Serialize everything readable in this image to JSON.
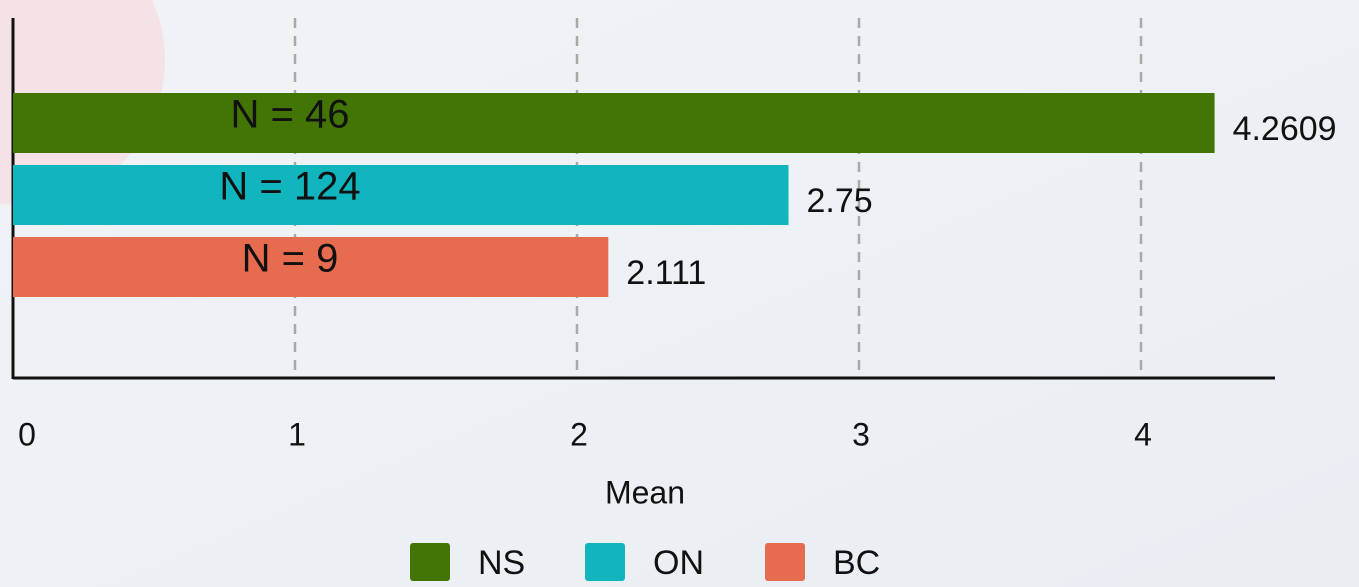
{
  "chart_data": {
    "type": "bar",
    "orientation": "horizontal",
    "x_label": "Mean",
    "series": [
      {
        "name": "NS",
        "color": "#437505",
        "values": [
          4.2609
        ]
      },
      {
        "name": "ON",
        "color": "#10b5be",
        "values": [
          2.75
        ]
      },
      {
        "name": "BC",
        "color": "#e76b4f",
        "values": [
          2.111
        ]
      }
    ],
    "annotations": [
      "N = 46",
      "N = 124",
      "N = 9"
    ],
    "xlim": [
      0,
      4.5
    ],
    "xticks": [
      0,
      1,
      2,
      3,
      4
    ],
    "grid": true,
    "legend": "bottom"
  }
}
